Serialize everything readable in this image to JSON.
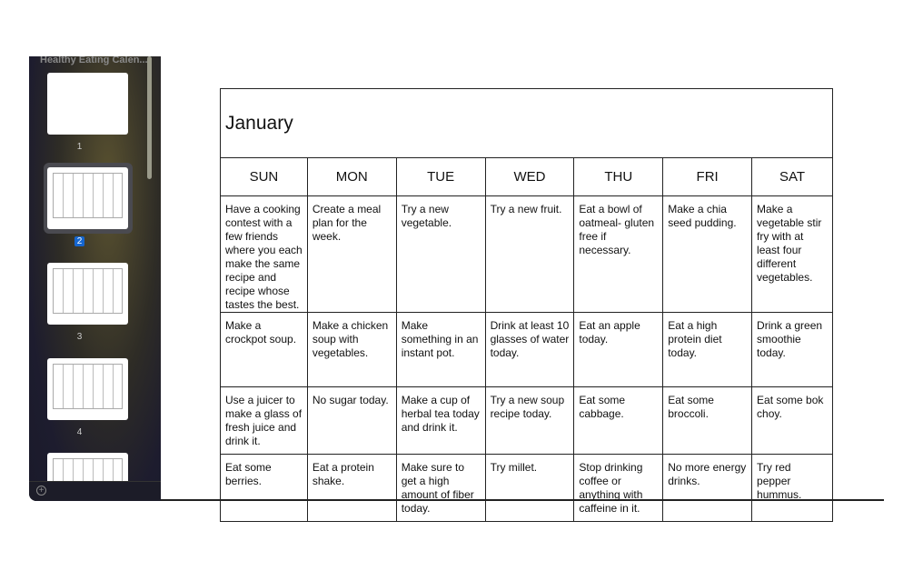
{
  "sidebar": {
    "doc_title": "Healthy Eating Calen...",
    "pages": [
      "1",
      "2",
      "3",
      "4"
    ],
    "selected_page": "2"
  },
  "calendar": {
    "month": "January",
    "days": [
      "SUN",
      "MON",
      "TUE",
      "WED",
      "THU",
      "FRI",
      "SAT"
    ],
    "weeks": [
      [
        "Have a cooking contest with a few friends where you each make the same recipe and recipe whose tastes the best.",
        "Create a meal plan for the week.",
        "Try a new vegetable.",
        "Try a new fruit.",
        "Eat a bowl of oatmeal- gluten free if necessary.",
        "Make a chia seed pudding.",
        "Make a vegetable stir fry with at least four different vegetables."
      ],
      [
        "Make a crockpot soup.",
        "Make a chicken soup with vegetables.",
        "Make something in an instant pot.",
        "Drink at least 10 glasses of water today.",
        "Eat an apple today.",
        "Eat a high protein diet today.",
        "Drink a green smoothie today."
      ],
      [
        "Use a juicer to make a glass of fresh juice and drink it.",
        "No sugar today.",
        "Make a cup of herbal tea today and drink it.",
        "Try a new soup recipe today.",
        "Eat some cabbage.",
        "Eat some broccoli.",
        "Eat some bok choy."
      ],
      [
        "Eat some berries.",
        "Eat a protein shake.",
        "Make sure to get a high amount of fiber today.",
        "Try millet.",
        "Stop drinking coffee or anything with caffeine in it.",
        "No more energy drinks.",
        "Try red pepper hummus."
      ]
    ]
  }
}
